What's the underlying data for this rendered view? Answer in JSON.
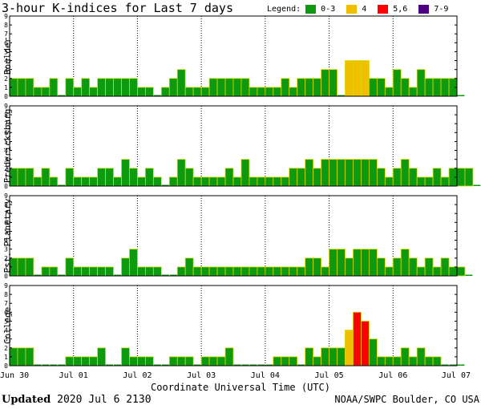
{
  "header": {
    "title": "3-hour K-indices for Last 7 days"
  },
  "legend": {
    "label": "Legend:",
    "items": [
      {
        "label": "0-3",
        "color": "#0e9a0e"
      },
      {
        "label": "4",
        "color": "#f0c000"
      },
      {
        "label": "5,6",
        "color": "#ff0000"
      },
      {
        "label": "7-9",
        "color": "#4b0082"
      }
    ]
  },
  "footer": {
    "updated_label": "Updated",
    "updated_value": "2020 Jul  6 2130",
    "source": "NOAA/SWPC Boulder, CO USA"
  },
  "chart_data": {
    "type": "bar",
    "title": "3-hour K-indices for Last 7 days",
    "xlabel": "Coordinate Universal Time (UTC)",
    "ylim": [
      0,
      9
    ],
    "yticks": [
      0,
      1,
      2,
      3,
      4,
      5,
      6,
      7,
      8,
      9
    ],
    "x_tick_labels": [
      "Jun 30",
      "Jul 01",
      "Jul 02",
      "Jul 03",
      "Jul 04",
      "Jul 05",
      "Jul 06",
      "Jul 07"
    ],
    "slots_per_day": 8,
    "color_bins": [
      {
        "range": "0-3",
        "color": "#0e9a0e"
      },
      {
        "range": "4",
        "color": "#f0c000"
      },
      {
        "range": "5,6",
        "color": "#ff0000"
      },
      {
        "range": "7-9",
        "color": "#4b0082"
      }
    ],
    "series": [
      {
        "name": "Boulder",
        "values": [
          2,
          2,
          2,
          1,
          1,
          2,
          0,
          2,
          1,
          2,
          1,
          2,
          2,
          2,
          2,
          2,
          1,
          1,
          0,
          1,
          2,
          3,
          1,
          1,
          1,
          2,
          2,
          2,
          2,
          2,
          1,
          1,
          1,
          1,
          2,
          1,
          2,
          2,
          2,
          3,
          3,
          0,
          4,
          4,
          4,
          2,
          2,
          1,
          3,
          2,
          1,
          3,
          2,
          2,
          2,
          2,
          0
        ]
      },
      {
        "name": "Fredericksburg",
        "values": [
          2,
          2,
          2,
          1,
          2,
          1,
          0,
          2,
          1,
          1,
          1,
          2,
          2,
          1,
          3,
          2,
          1,
          2,
          1,
          0,
          1,
          3,
          2,
          1,
          1,
          1,
          1,
          2,
          1,
          3,
          1,
          1,
          1,
          1,
          1,
          2,
          2,
          3,
          2,
          3,
          3,
          3,
          3,
          3,
          3,
          3,
          2,
          1,
          2,
          3,
          2,
          1,
          1,
          2,
          1,
          2,
          2,
          2,
          0
        ]
      },
      {
        "name": "Est. Planetary",
        "values": [
          2,
          2,
          2,
          0,
          1,
          1,
          0,
          2,
          1,
          1,
          1,
          1,
          1,
          0,
          2,
          3,
          1,
          1,
          1,
          0,
          0,
          1,
          2,
          1,
          1,
          1,
          1,
          1,
          1,
          1,
          1,
          1,
          1,
          1,
          1,
          1,
          1,
          2,
          2,
          1,
          3,
          3,
          2,
          3,
          3,
          3,
          2,
          1,
          2,
          3,
          2,
          1,
          2,
          1,
          2,
          1,
          1,
          0
        ]
      },
      {
        "name": "College",
        "values": [
          2,
          2,
          2,
          0,
          0,
          0,
          0,
          1,
          1,
          1,
          1,
          2,
          0,
          0,
          2,
          1,
          1,
          1,
          0,
          0,
          1,
          1,
          1,
          0,
          1,
          1,
          1,
          2,
          0,
          0,
          0,
          0,
          0,
          1,
          1,
          1,
          0,
          2,
          1,
          2,
          2,
          2,
          4,
          6,
          5,
          3,
          1,
          1,
          1,
          2,
          1,
          2,
          1,
          1,
          0,
          0,
          0
        ]
      }
    ]
  }
}
